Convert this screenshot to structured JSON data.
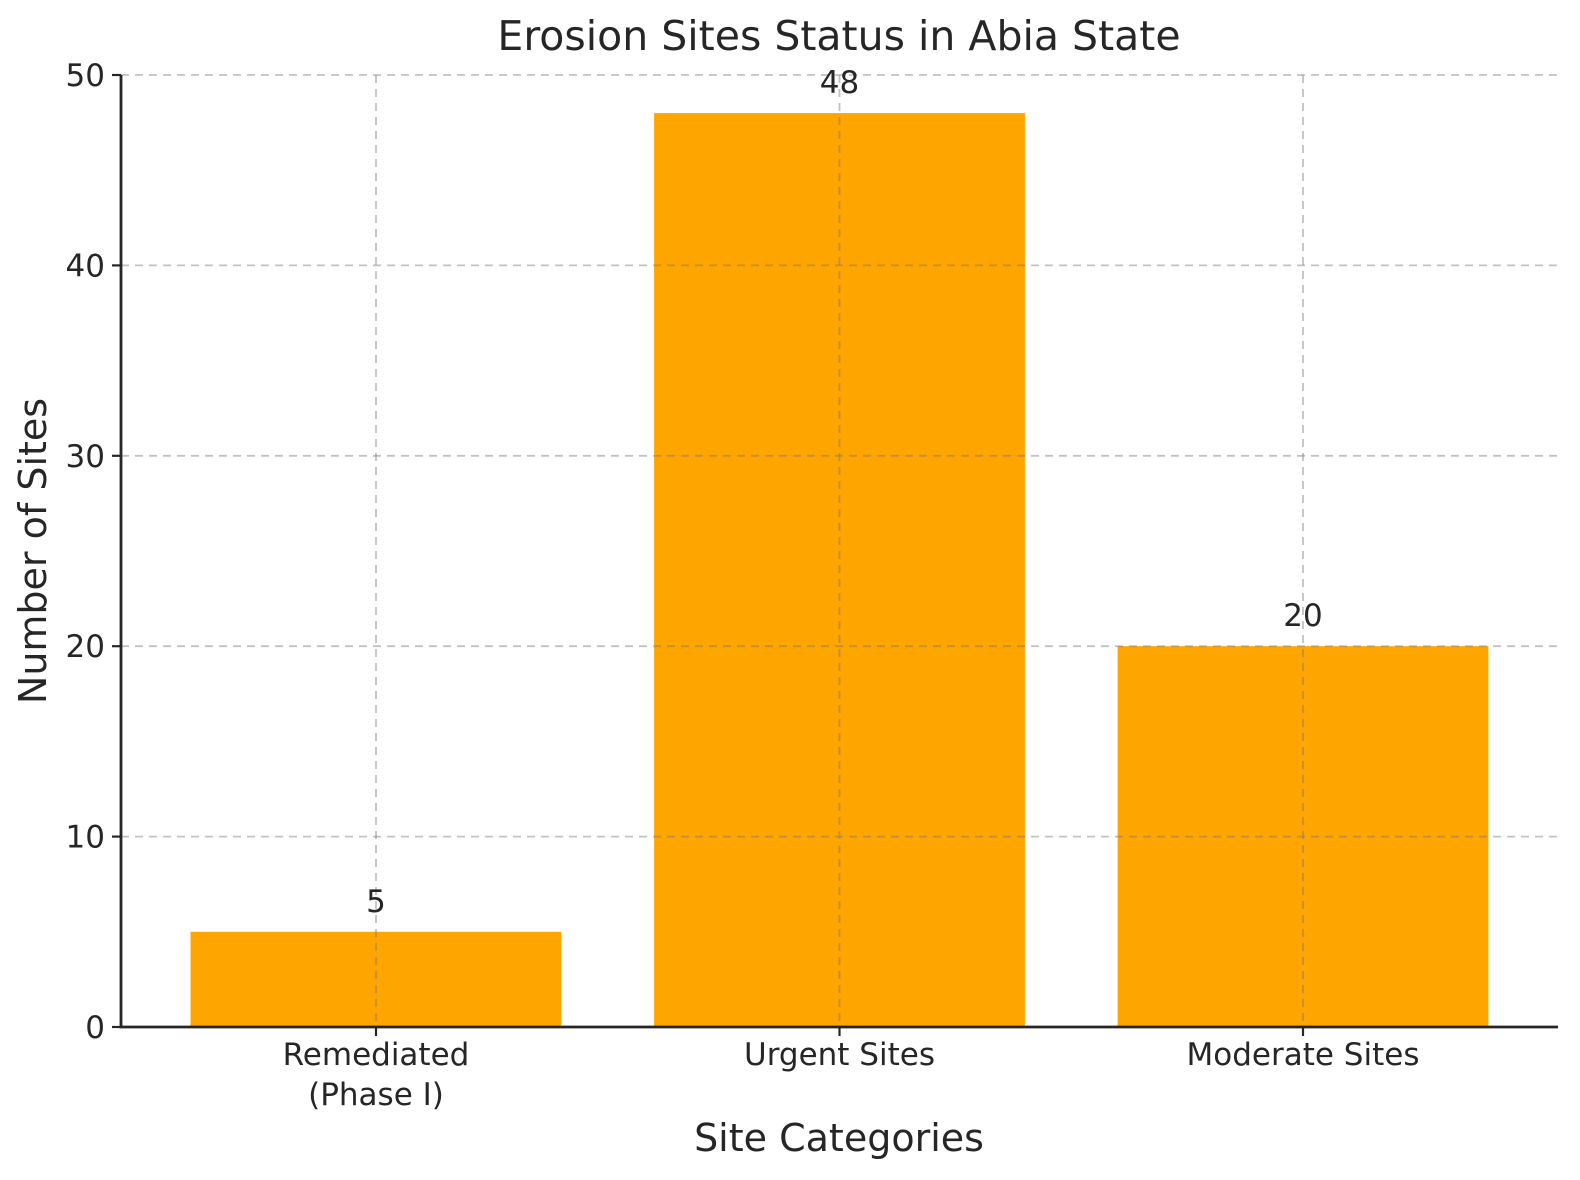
{
  "chart_data": {
    "type": "bar",
    "title": "Erosion Sites Status in Abia State",
    "xlabel": "Site Categories",
    "ylabel": "Number of Sites",
    "categories": [
      "Remediated\n(Phase I)",
      "Urgent Sites",
      "Moderate Sites"
    ],
    "values": [
      5,
      48,
      20
    ],
    "bar_value_labels": [
      "5",
      "48",
      "20"
    ],
    "ylim": [
      0,
      50
    ],
    "yticks": [
      0,
      10,
      20,
      30,
      40,
      50
    ],
    "grid": "dashed-both-axes",
    "legend_position": "none",
    "colors": {
      "bar": "#FFA500",
      "text": "#262626",
      "spine": "#262626",
      "grid": "#787878",
      "background": "#ffffff"
    }
  }
}
